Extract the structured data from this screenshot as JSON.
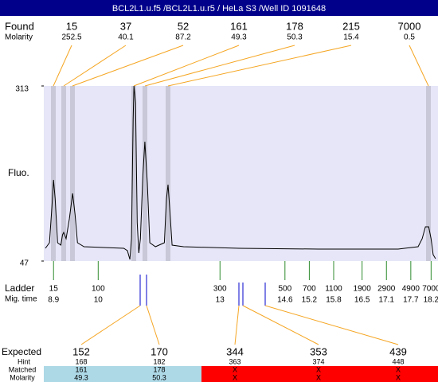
{
  "title": "BCL2L1.u.f5 /BCL2L1.u.r5 / HeLa S3 /Well ID 1091648",
  "found": {
    "label": "Found",
    "molarity_label": "Molarity",
    "sizes": [
      15,
      37,
      52,
      161,
      178,
      215,
      7000
    ],
    "molarity": [
      252.5,
      40.1,
      87.2,
      49.3,
      50.3,
      15.4,
      0.5
    ]
  },
  "plot": {
    "y_label": "Fluo.",
    "ylim": [
      47,
      313
    ],
    "yticks": [
      47,
      313
    ],
    "xlim": [
      8.66,
      18.37
    ],
    "trace": {
      "x": [
        8.7,
        8.8,
        8.86,
        8.9,
        8.94,
        9.0,
        9.08,
        9.12,
        9.15,
        9.21,
        9.29,
        9.37,
        9.43,
        9.49,
        9.65,
        10.14,
        10.63,
        10.72,
        10.78,
        10.82,
        10.86,
        10.88,
        10.92,
        10.96,
        11.0,
        11.04,
        11.1,
        11.15,
        11.21,
        11.27,
        11.41,
        11.63,
        11.68,
        11.72,
        11.76,
        11.82,
        12.1,
        13.47,
        15.43,
        17.39,
        17.88,
        17.98,
        18.06,
        18.14,
        18.2,
        18.25,
        18.31
      ],
      "values": [
        66.3,
        74.8,
        129.2,
        170.3,
        141.3,
        74.8,
        71.2,
        86.9,
        90.5,
        80.9,
        111.1,
        149.8,
        117.1,
        74.8,
        68.8,
        67.6,
        66.3,
        62.7,
        49.4,
        80.9,
        262.2,
        313,
        287.3,
        105.0,
        59.1,
        80.9,
        177.6,
        228.4,
        165.5,
        74.8,
        68.8,
        74.8,
        141.3,
        163.1,
        129.2,
        71.2,
        68.8,
        66.3,
        65.1,
        65.1,
        68.8,
        80.9,
        99.0,
        99.0,
        80.9,
        56.7,
        50.6
      ]
    }
  },
  "ladder": {
    "label": "Ladder",
    "time_label": "Mig. time",
    "sizes": [
      15,
      100,
      300,
      500,
      700,
      1100,
      1900,
      2900,
      4900,
      7000
    ],
    "times": [
      8.9,
      10,
      13,
      14.6,
      15.2,
      15.8,
      16.5,
      17.1,
      17.7,
      18.2
    ]
  },
  "expected": {
    "label": "Expected",
    "hint_label": "Hint",
    "matched_label": "Matched",
    "molarity_label": "Molarity",
    "sizes": [
      152,
      170,
      344,
      353,
      439
    ],
    "hint": [
      168,
      182,
      363,
      374,
      448
    ],
    "matched": [
      "161",
      "178",
      "X",
      "X",
      "X"
    ],
    "molarity": [
      "49.3",
      "50.3",
      "X",
      "X",
      "X"
    ]
  }
}
